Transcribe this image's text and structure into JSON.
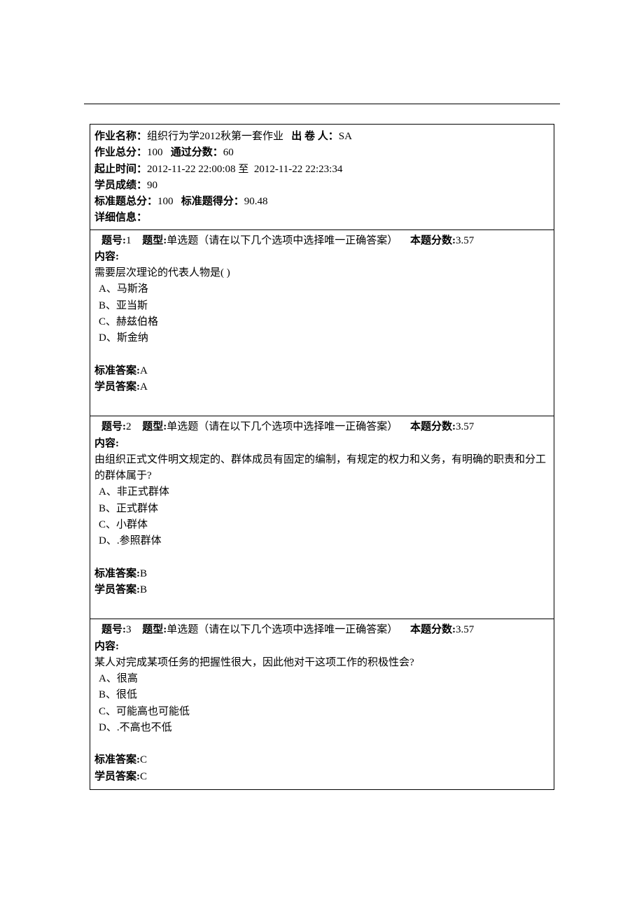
{
  "header": {
    "assignment_name_label": "作业名称：",
    "assignment_name": "组织行为学2012秋第一套作业",
    "author_label": "出 卷 人：",
    "author": "SA",
    "total_score_label": "作业总分：",
    "total_score": "100",
    "pass_score_label": "通过分数：",
    "pass_score": "60",
    "time_label": "起止时间：",
    "time_start": "2012-11-22 22:00:08",
    "time_to": "至",
    "time_end": "2012-11-22 22:23:34",
    "student_score_label": "学员成绩：",
    "student_score": "90",
    "std_total_label": "标准题总分：",
    "std_total": "100",
    "std_got_label": "标准题得分：",
    "std_got": "90.48",
    "detail_label": "详细信息："
  },
  "common": {
    "q_num_prefix": "题号:",
    "q_type_prefix": "题型:",
    "q_type_text": "单选题（请在以下几个选项中选择唯一正确答案）",
    "q_score_prefix": "本题分数:",
    "content_label": "内容:",
    "std_answer_label": "标准答案:",
    "student_answer_label": "学员答案:"
  },
  "questions": [
    {
      "num": "1",
      "score": "3.57",
      "body": "需要层次理论的代表人物是( )",
      "options": [
        "A、马斯洛",
        "B、亚当斯",
        "C、赫兹伯格",
        "D、斯金纳"
      ],
      "std_answer": "A",
      "student_answer": "A"
    },
    {
      "num": "2",
      "score": "3.57",
      "body": "由组织正式文件明文规定的、群体成员有固定的编制，有规定的权力和义务，有明确的职责和分工的群体属于?",
      "options": [
        "A、非正式群体",
        "B、正式群体",
        "C、小群体",
        "D、.参照群体"
      ],
      "std_answer": "B",
      "student_answer": "B"
    },
    {
      "num": "3",
      "score": "3.57",
      "body": "某人对完成某项任务的把握性很大，因此他对干这项工作的积极性会?",
      "options": [
        "A、很高",
        "B、很低",
        "C、可能高也可能低",
        "D、.不高也不低"
      ],
      "std_answer": "C",
      "student_answer": "C"
    }
  ]
}
